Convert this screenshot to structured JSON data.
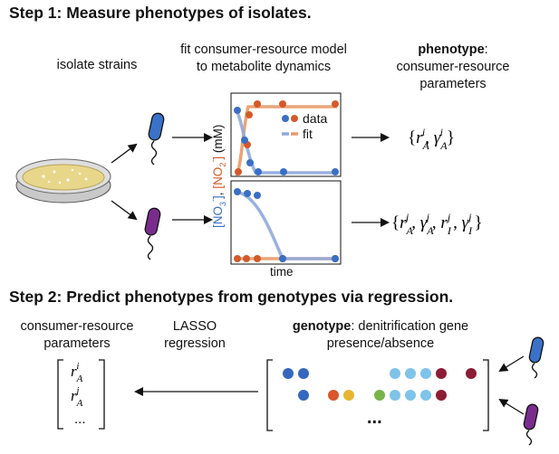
{
  "step1": {
    "title": "Step 1: Measure phenotypes of isolates.",
    "isolate_label": "isolate strains",
    "fit_label": [
      "fit consumer-resource model",
      "to metabolite dynamics"
    ],
    "phenotype_label": {
      "bold": "phenotype",
      "rest": ":",
      "lines": [
        "consumer-resource",
        "parameters"
      ]
    },
    "result_top": "{r_A^i, γ_A^i}",
    "result_bottom": "{r_A^j, γ_A^j, r_I^j, γ_I^j}"
  },
  "plot": {
    "legend_data": "data",
    "legend_fit": "fit",
    "xlabel": "time",
    "ylabel_no3": "[NO3-]",
    "ylabel_sep": ", ",
    "ylabel_no2": "[NO2-]",
    "ylabel_unit": " (mM)"
  },
  "step2": {
    "title": "Step 2: Predict phenotypes from genotypes via regression.",
    "params_label": [
      "consumer-resource",
      "parameters"
    ],
    "lasso_label": [
      "LASSO",
      "regression"
    ],
    "genotype_label": {
      "bold": "genotype",
      "rest": ": denitrification gene",
      "line2": "presence/absence"
    },
    "vector_rows": [
      "r_A^i",
      "r_A^j",
      "..."
    ],
    "ellipsis": "..."
  },
  "colors": {
    "nitrate_blue": "#3a6fc4",
    "nitrite_orange": "#d4592a",
    "fit_blue": "#8fa9dd",
    "fit_orange": "#e89a6a",
    "bacterium_blue": "#3a72c8",
    "bacterium_purple": "#7a2c8e",
    "petri_agar": "#e8d78a",
    "gene_light_blue": "#7ec3ea",
    "gene_dark_blue": "#3567bd",
    "gene_orange": "#d9572a",
    "gene_yellow": "#e6b534",
    "gene_green": "#78b348",
    "gene_maroon": "#8c1d35"
  },
  "icons": [
    "petri-dish-icon",
    "bacterium-icon",
    "arrow-icon"
  ]
}
